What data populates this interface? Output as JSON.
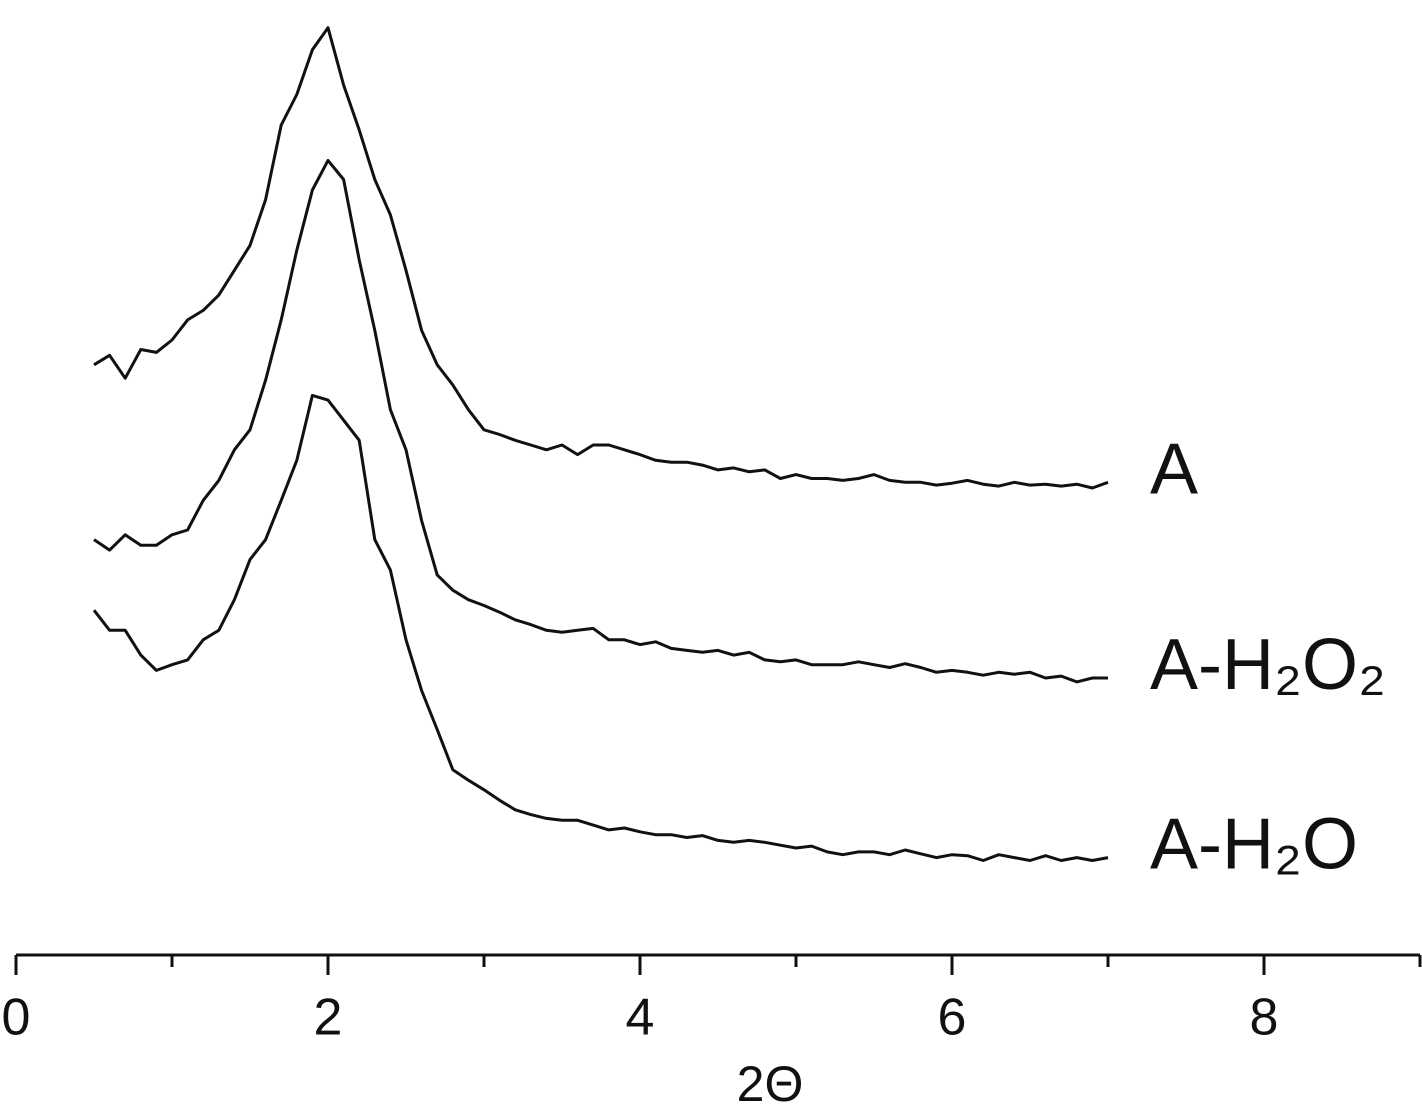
{
  "chart_data": {
    "type": "line",
    "xlabel": "2Θ",
    "x": [
      0.5,
      0.6,
      0.7,
      0.8,
      0.9,
      1.0,
      1.1,
      1.2,
      1.3,
      1.4,
      1.5,
      1.6,
      1.7,
      1.8,
      1.9,
      2.0,
      2.1,
      2.2,
      2.3,
      2.4,
      2.5,
      2.6,
      2.7,
      2.8,
      2.9,
      3.0,
      3.1,
      3.2,
      3.3,
      3.4,
      3.5,
      3.6,
      3.7,
      3.8,
      3.9,
      4.0,
      4.1,
      4.2,
      4.3,
      4.4,
      4.5,
      4.6,
      4.7,
      4.8,
      4.9,
      5.0,
      5.1,
      5.2,
      5.3,
      5.4,
      5.5,
      5.6,
      5.7,
      5.8,
      5.9,
      6.0,
      6.1,
      6.2,
      6.3,
      6.4,
      6.5,
      6.6,
      6.7,
      6.8,
      6.9,
      7.0
    ],
    "series": [
      {
        "name": "A",
        "color": "#111111",
        "values": [
          61.8,
          62.8,
          60.4,
          63.4,
          63.1,
          64.4,
          66.5,
          67.5,
          69.1,
          71.7,
          74.3,
          79.1,
          86.9,
          90.1,
          94.8,
          97.1,
          91.1,
          86.4,
          81.2,
          77.5,
          71.7,
          65.4,
          61.8,
          59.7,
          57.1,
          55.0,
          54.5,
          53.9,
          53.4,
          52.9,
          53.4,
          52.4,
          53.4,
          53.4,
          52.9,
          52.4,
          51.8,
          51.6,
          51.6,
          51.3,
          50.8,
          51.0,
          50.6,
          50.8,
          49.9,
          50.3,
          49.9,
          49.9,
          49.7,
          49.9,
          50.3,
          49.7,
          49.5,
          49.5,
          49.2,
          49.4,
          49.7,
          49.3,
          49.1,
          49.5,
          49.2,
          49.3,
          49.1,
          49.3,
          48.9,
          49.5
        ]
      },
      {
        "name": "A-H₂O₂",
        "color": "#111111",
        "values": [
          43.5,
          42.4,
          44.0,
          42.9,
          42.9,
          44.0,
          44.5,
          47.6,
          49.7,
          52.9,
          55.0,
          60.2,
          66.5,
          73.8,
          80.1,
          83.2,
          81.2,
          72.8,
          65.4,
          57.1,
          52.9,
          45.5,
          39.8,
          38.2,
          37.2,
          36.6,
          35.9,
          35.1,
          34.6,
          34.0,
          33.8,
          34.0,
          34.2,
          33.0,
          33.0,
          32.5,
          32.8,
          32.1,
          31.9,
          31.7,
          31.9,
          31.4,
          31.7,
          30.9,
          30.7,
          30.9,
          30.4,
          30.4,
          30.4,
          30.7,
          30.4,
          30.1,
          30.5,
          30.1,
          29.6,
          29.8,
          29.6,
          29.3,
          29.6,
          29.4,
          29.6,
          29.0,
          29.2,
          28.6,
          29.0,
          29.0
        ]
      },
      {
        "name": "A-H₂O",
        "color": "#111111",
        "values": [
          36.1,
          34.0,
          34.0,
          31.4,
          29.8,
          30.4,
          30.9,
          33.0,
          34.0,
          37.2,
          41.4,
          43.5,
          47.6,
          51.8,
          58.6,
          58.1,
          56.0,
          53.9,
          43.5,
          40.3,
          33.0,
          27.7,
          23.6,
          19.4,
          18.3,
          17.3,
          16.2,
          15.2,
          14.7,
          14.3,
          14.1,
          14.1,
          13.6,
          13.1,
          13.3,
          12.9,
          12.6,
          12.6,
          12.3,
          12.5,
          12.0,
          11.8,
          12.0,
          11.8,
          11.5,
          11.2,
          11.4,
          10.8,
          10.5,
          10.8,
          10.8,
          10.5,
          11.0,
          10.6,
          10.2,
          10.5,
          10.4,
          9.9,
          10.5,
          10.2,
          9.9,
          10.4,
          9.9,
          10.2,
          9.9,
          10.2
        ]
      }
    ],
    "xlim": [
      0,
      9
    ],
    "xticks": [
      0,
      2,
      4,
      6,
      8
    ],
    "xminorticks": [
      1,
      3,
      5,
      7,
      9
    ],
    "ylim": [
      0,
      100
    ],
    "grid": false
  }
}
